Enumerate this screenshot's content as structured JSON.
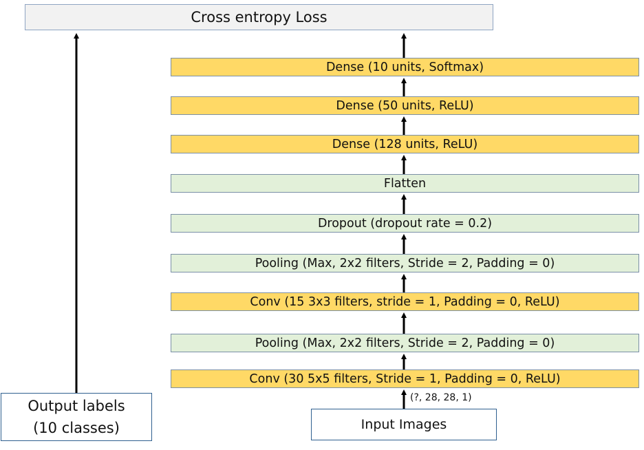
{
  "loss": {
    "label": "Cross entropy Loss"
  },
  "layers": [
    {
      "label": "Dense (10 units, Softmax)"
    },
    {
      "label": "Dense (50 units, ReLU)"
    },
    {
      "label": "Dense (128 units, ReLU)"
    },
    {
      "label": "Flatten"
    },
    {
      "label": "Dropout (dropout rate = 0.2)"
    },
    {
      "label": "Pooling (Max, 2x2 filters, Stride = 2, Padding = 0)"
    },
    {
      "label": "Conv (15 3x3 filters, stride = 1, Padding = 0, ReLU)"
    },
    {
      "label": "Pooling (Max, 2x2 filters, Stride = 2, Padding = 0)"
    },
    {
      "label": "Conv (30 5x5 filters, Stride = 1, Padding = 0, ReLU)"
    }
  ],
  "output": {
    "line1": "Output labels",
    "line2": "(10 classes)"
  },
  "input": {
    "label": "Input Images",
    "shape": "(?, 28, 28, 1)"
  },
  "colors": {
    "dense_fill": "#ffd966",
    "green_fill": "#e2f0d9",
    "loss_fill": "#f2f2f2"
  }
}
